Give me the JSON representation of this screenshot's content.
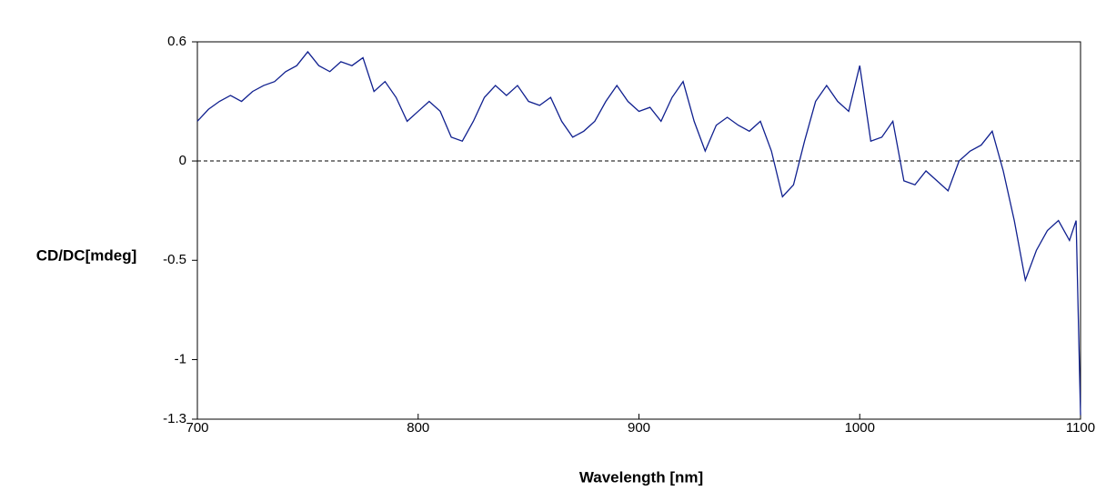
{
  "chart_data": {
    "type": "line",
    "xlabel": "Wavelength [nm]",
    "ylabel": "CD/DC[mdeg]",
    "x": [
      700,
      705,
      710,
      715,
      720,
      725,
      730,
      735,
      740,
      745,
      750,
      755,
      760,
      765,
      770,
      775,
      780,
      785,
      790,
      795,
      800,
      805,
      810,
      815,
      820,
      825,
      830,
      835,
      840,
      845,
      850,
      855,
      860,
      865,
      870,
      875,
      880,
      885,
      890,
      895,
      900,
      905,
      910,
      915,
      920,
      925,
      930,
      935,
      940,
      945,
      950,
      955,
      960,
      965,
      970,
      975,
      980,
      985,
      990,
      995,
      1000,
      1005,
      1010,
      1015,
      1020,
      1025,
      1030,
      1035,
      1040,
      1045,
      1050,
      1055,
      1060,
      1065,
      1070,
      1075,
      1080,
      1085,
      1090,
      1095,
      1098,
      1100
    ],
    "series": [
      {
        "color": "#10208f",
        "values": [
          0.2,
          0.26,
          0.3,
          0.33,
          0.3,
          0.35,
          0.38,
          0.4,
          0.45,
          0.48,
          0.55,
          0.48,
          0.45,
          0.5,
          0.48,
          0.52,
          0.35,
          0.4,
          0.32,
          0.2,
          0.25,
          0.3,
          0.25,
          0.12,
          0.1,
          0.2,
          0.32,
          0.38,
          0.33,
          0.38,
          0.3,
          0.28,
          0.32,
          0.2,
          0.12,
          0.15,
          0.2,
          0.3,
          0.38,
          0.3,
          0.25,
          0.27,
          0.2,
          0.32,
          0.4,
          0.2,
          0.05,
          0.18,
          0.22,
          0.18,
          0.15,
          0.2,
          0.05,
          -0.18,
          -0.12,
          0.1,
          0.3,
          0.38,
          0.3,
          0.25,
          0.48,
          0.1,
          0.12,
          0.2,
          -0.1,
          -0.12,
          -0.05,
          -0.1,
          -0.15,
          0.0,
          0.05,
          0.08,
          0.15,
          -0.05,
          -0.3,
          -0.6,
          -0.45,
          -0.35,
          -0.3,
          -0.4,
          -0.3,
          -1.28
        ]
      }
    ],
    "xlim": [
      700,
      1100
    ],
    "xticks": [
      700,
      800,
      900,
      1000,
      1100
    ],
    "ylim": [
      -1.3,
      0.6
    ],
    "yticks": [
      0.6,
      0,
      -0.5,
      -1,
      -1.3
    ],
    "reference_line": 0
  }
}
